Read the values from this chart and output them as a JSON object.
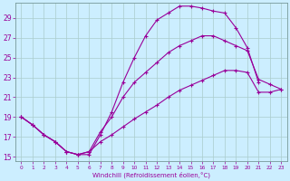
{
  "bg_color": "#cceeff",
  "grid_color": "#aacccc",
  "line_color": "#990099",
  "xlim": [
    -0.5,
    23.5
  ],
  "ylim": [
    14.5,
    30.5
  ],
  "xticks": [
    0,
    1,
    2,
    3,
    4,
    5,
    6,
    7,
    8,
    9,
    10,
    11,
    12,
    13,
    14,
    15,
    16,
    17,
    18,
    19,
    20,
    21,
    22,
    23
  ],
  "yticks": [
    15,
    17,
    19,
    21,
    23,
    25,
    27,
    29
  ],
  "xlabel": "Windchill (Refroidissement éolien,°C)",
  "line1_x": [
    0,
    1,
    2,
    3,
    4,
    5,
    6,
    7,
    8,
    9,
    10,
    11,
    12,
    13,
    14,
    15,
    16,
    17,
    18,
    19,
    20,
    21
  ],
  "line1_y": [
    19.0,
    18.2,
    17.2,
    16.5,
    15.5,
    15.2,
    15.2,
    17.2,
    19.5,
    22.5,
    25.0,
    27.2,
    28.8,
    29.5,
    30.2,
    30.2,
    30.0,
    29.7,
    29.5,
    28.0,
    26.0,
    22.5
  ],
  "line2_x": [
    0,
    1,
    2,
    3,
    4,
    5,
    6,
    7,
    8,
    9,
    10,
    11,
    12,
    13,
    14,
    15,
    16,
    17,
    18,
    19,
    20,
    21,
    22,
    23
  ],
  "line2_y": [
    19.0,
    18.2,
    17.2,
    16.5,
    15.5,
    15.2,
    15.5,
    17.5,
    19.0,
    21.0,
    22.5,
    23.5,
    24.5,
    25.5,
    26.2,
    26.7,
    27.2,
    27.2,
    26.7,
    26.2,
    25.7,
    22.8,
    22.3,
    21.8
  ],
  "line3_x": [
    0,
    1,
    2,
    3,
    4,
    5,
    6,
    7,
    8,
    9,
    10,
    11,
    12,
    13,
    14,
    15,
    16,
    17,
    18,
    19,
    20,
    21,
    22,
    23
  ],
  "line3_y": [
    19.0,
    18.2,
    17.2,
    16.5,
    15.5,
    15.2,
    15.5,
    16.5,
    17.2,
    18.0,
    18.8,
    19.5,
    20.2,
    21.0,
    21.7,
    22.2,
    22.7,
    23.2,
    23.7,
    23.7,
    23.5,
    21.5,
    21.5,
    21.8
  ]
}
